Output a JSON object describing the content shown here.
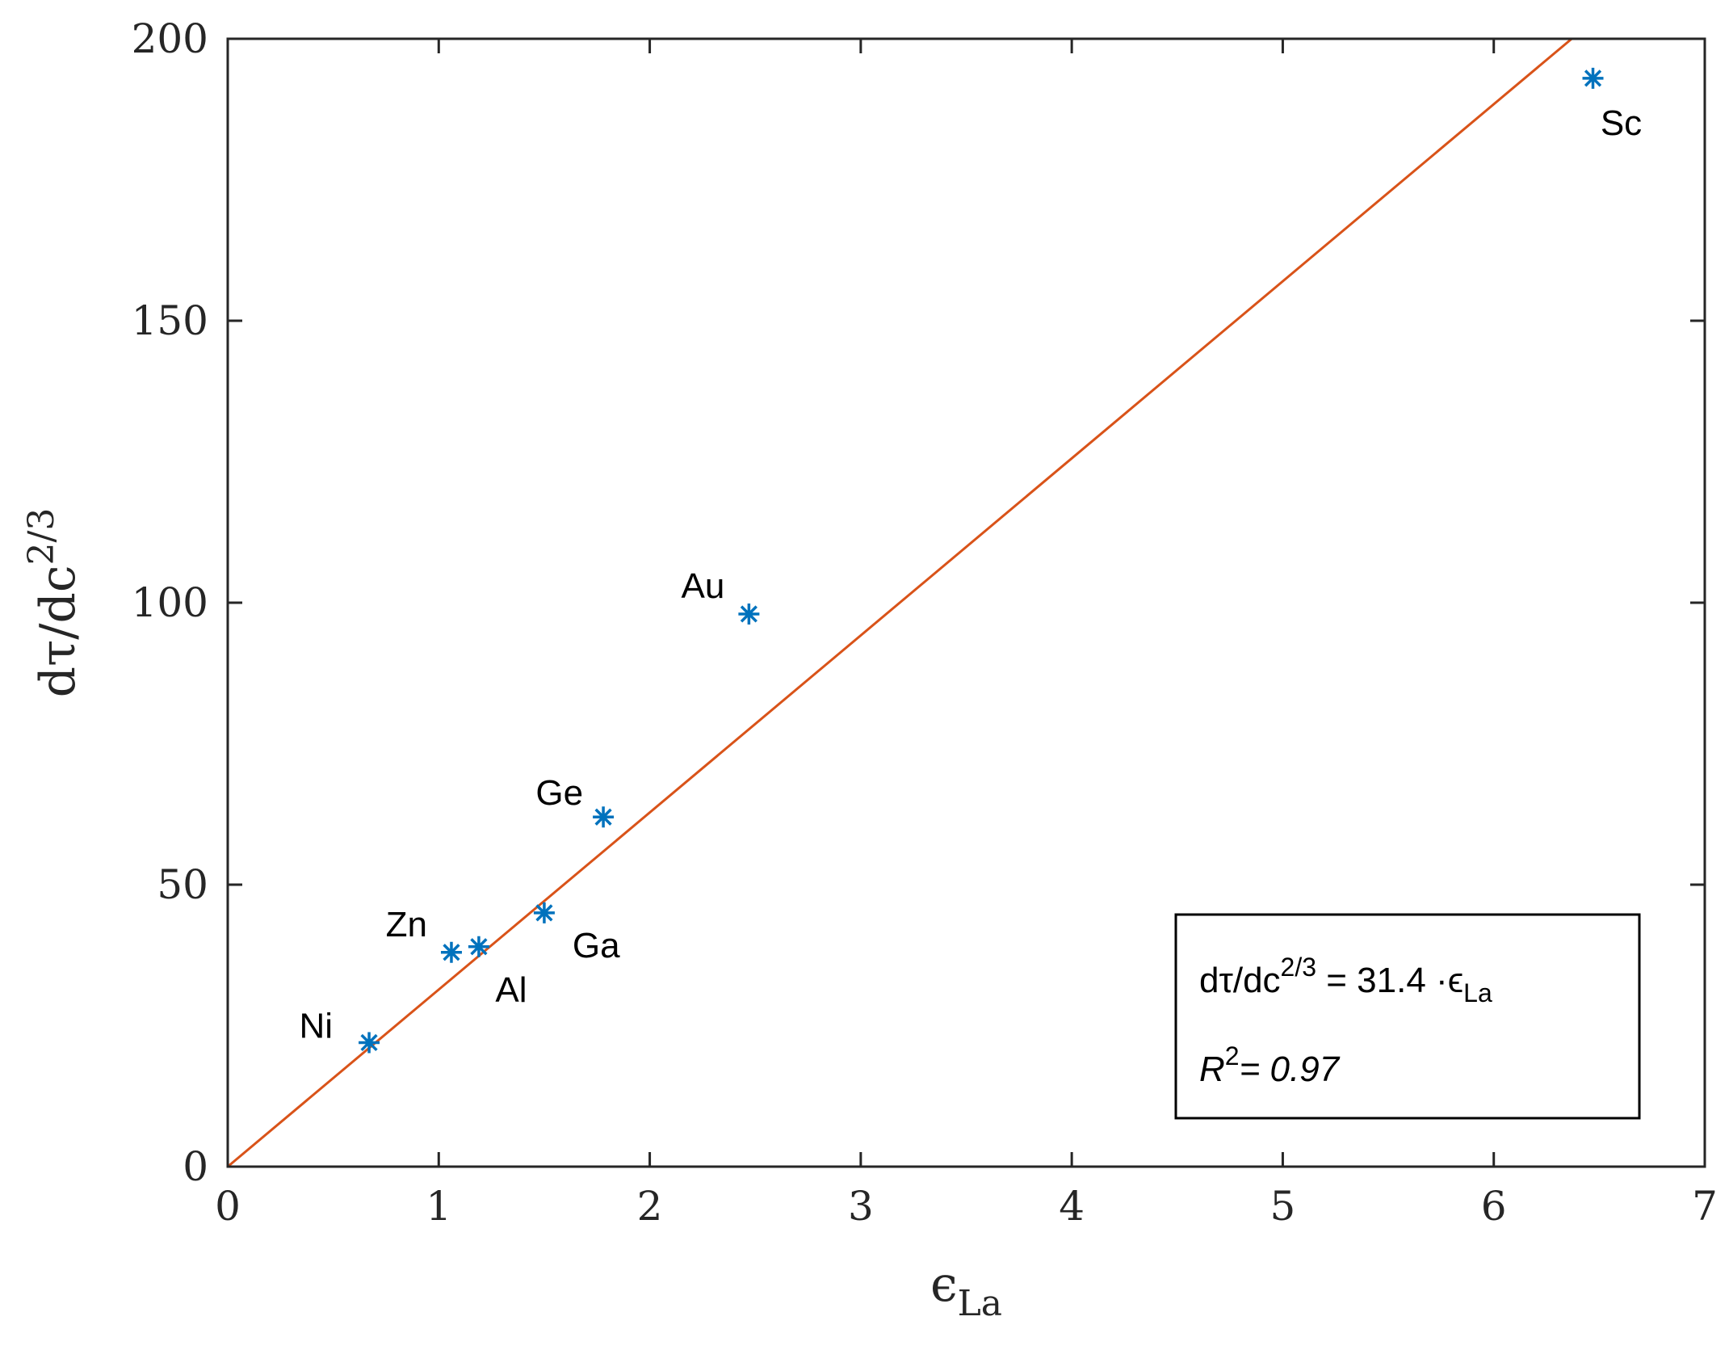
{
  "chart_data": {
    "type": "scatter",
    "xlabel": {
      "base": "ϵ",
      "sub": "La"
    },
    "ylabel": {
      "base": "dτ/dc",
      "sup": "2/3"
    },
    "xlim": [
      0,
      7
    ],
    "ylim": [
      0,
      200
    ],
    "x_ticks": [
      0,
      1,
      2,
      3,
      4,
      5,
      6,
      7
    ],
    "y_ticks": [
      0,
      50,
      100,
      150,
      200
    ],
    "grid": false,
    "points": [
      {
        "label": "Ni",
        "x": 0.67,
        "y": 22
      },
      {
        "label": "Zn",
        "x": 1.06,
        "y": 38
      },
      {
        "label": "Al",
        "x": 1.19,
        "y": 39
      },
      {
        "label": "Ga",
        "x": 1.5,
        "y": 45
      },
      {
        "label": "Ge",
        "x": 1.78,
        "y": 62
      },
      {
        "label": "Au",
        "x": 2.47,
        "y": 98
      },
      {
        "label": "Sc",
        "x": 6.47,
        "y": 193
      }
    ],
    "fit_line": {
      "slope": 31.4,
      "intercept": 0,
      "color": "#D95319"
    },
    "marker_color": "#0072BD",
    "annotation": {
      "eq_lhs": "dτ/dc",
      "eq_sup": "2/3",
      "eq_rhs": " = 31.4 ·ϵ",
      "eq_sub": "La",
      "r2_label": "R",
      "r2_sup": "2",
      "r2_value": "= 0.97",
      "placement": "bottom-right"
    }
  }
}
